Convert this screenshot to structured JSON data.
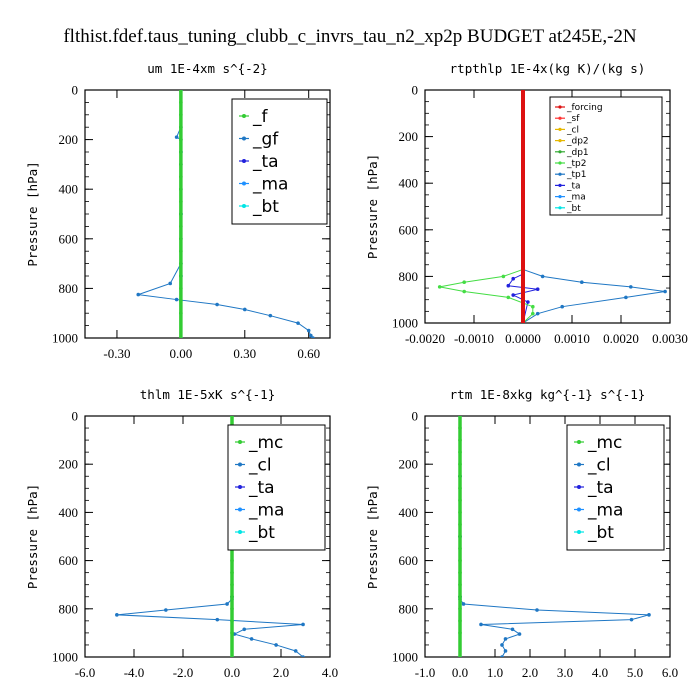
{
  "title": "flthist.fdef.taus_tuning_clubb_c_invrs_tau_n2_xp2p  BUDGET at245E,-2N",
  "colors": {
    "f": "#33cc33",
    "gf": "#1f77c4",
    "ta": "#2222dd",
    "ma": "#1e90ff",
    "bt": "#00e5e5",
    "mc": "#33cc33",
    "cl": "#1f77c4",
    "forcing": "#dd1111",
    "sf": "#ff3333",
    "dp2": "#e6b800",
    "dp1": "#33aa33",
    "tp2": "#44dd44",
    "tp1": "#1f77c4"
  },
  "chart_data": [
    {
      "type": "line",
      "title": "um   1E-4xm s^{-2}",
      "ylabel": "Pressure [hPa]",
      "xlim": [
        -0.45,
        0.7
      ],
      "ylim": [
        1000,
        0
      ],
      "xticks": [
        -0.3,
        0.0,
        0.3,
        0.6
      ],
      "xtick_labels": [
        "-0.30",
        "0.00",
        "0.30",
        "0.60"
      ],
      "yticks": [
        0,
        200,
        400,
        600,
        800,
        1000
      ],
      "legend_position": "top-right",
      "legend_size": "large",
      "series": [
        {
          "name": "_f",
          "color_key": "f",
          "x": [
            0,
            0,
            0,
            0,
            0,
            0,
            0,
            0,
            0,
            0,
            0,
            0,
            0,
            0,
            0,
            0,
            0,
            0,
            0,
            0
          ],
          "y": [
            0,
            50,
            100,
            150,
            200,
            250,
            300,
            350,
            400,
            450,
            500,
            550,
            600,
            650,
            700,
            750,
            800,
            850,
            900,
            1000
          ]
        },
        {
          "name": "_gf",
          "color_key": "gf",
          "x": [
            0.0,
            0.0,
            -0.02,
            0.0,
            0.0,
            0.0,
            0.0,
            0.0,
            0.0,
            -0.05,
            -0.2,
            -0.02,
            0.17,
            0.3,
            0.42,
            0.55,
            0.6,
            0.61,
            0.62
          ],
          "y": [
            0,
            150,
            190,
            200,
            300,
            400,
            500,
            600,
            700,
            780,
            825,
            845,
            865,
            885,
            910,
            940,
            970,
            990,
            1000
          ]
        },
        {
          "name": "_ta",
          "color_key": "ta",
          "x": [
            0,
            0,
            0,
            0,
            0
          ],
          "y": [
            0,
            250,
            500,
            750,
            1000
          ]
        },
        {
          "name": "_ma",
          "color_key": "ma",
          "x": [
            0,
            0,
            0,
            0,
            0
          ],
          "y": [
            0,
            250,
            500,
            750,
            1000
          ]
        },
        {
          "name": "_bt",
          "color_key": "bt",
          "x": [
            0,
            0,
            0,
            0,
            0
          ],
          "y": [
            0,
            250,
            500,
            750,
            1000
          ]
        }
      ]
    },
    {
      "type": "line",
      "title": "rtpthlp   1E-4x(kg K)/(kg s)",
      "ylabel": "Pressure [hPa]",
      "xlim": [
        -0.002,
        0.003
      ],
      "ylim": [
        1000,
        0
      ],
      "xticks": [
        -0.002,
        -0.001,
        0.0,
        0.001,
        0.002,
        0.003
      ],
      "xtick_labels": [
        "-0.0020",
        "-0.0010",
        "0.0000",
        "0.0010",
        "0.0020",
        "0.0030"
      ],
      "yticks": [
        0,
        200,
        400,
        600,
        800,
        1000
      ],
      "legend_position": "top-right",
      "legend_size": "small",
      "series": [
        {
          "name": "_forcing",
          "color_key": "forcing",
          "x": [
            0,
            0,
            0,
            0,
            0,
            0,
            0,
            0,
            0,
            0,
            0,
            0,
            0,
            0,
            0,
            0,
            0,
            0,
            0,
            0
          ],
          "y": [
            0,
            50,
            100,
            150,
            200,
            250,
            300,
            350,
            400,
            450,
            500,
            550,
            600,
            650,
            700,
            750,
            800,
            850,
            900,
            1000
          ]
        },
        {
          "name": "_sf",
          "color_key": "sf",
          "x": [
            0,
            0,
            0,
            0,
            0
          ],
          "y": [
            0,
            250,
            500,
            750,
            1000
          ]
        },
        {
          "name": "_cl",
          "color_key": "dp2",
          "x": [
            0,
            0,
            0,
            0,
            0
          ],
          "y": [
            0,
            250,
            500,
            750,
            1000
          ]
        },
        {
          "name": "_dp2",
          "color_key": "dp2",
          "x": [
            0,
            0,
            0,
            0,
            0
          ],
          "y": [
            0,
            250,
            500,
            750,
            1000
          ]
        },
        {
          "name": "_dp1",
          "color_key": "dp1",
          "x": [
            0,
            0,
            0,
            0,
            0
          ],
          "y": [
            0,
            250,
            500,
            750,
            1000
          ]
        },
        {
          "name": "_tp2",
          "color_key": "tp2",
          "x": [
            0.0,
            0.0,
            -0.0004,
            -0.0012,
            -0.0017,
            -0.0012,
            -0.0003,
            0.0002,
            0.0002,
            0.0
          ],
          "y": [
            0,
            770,
            800,
            825,
            845,
            865,
            890,
            930,
            960,
            1000
          ]
        },
        {
          "name": "_tp1",
          "color_key": "tp1",
          "x": [
            0.0,
            0.0,
            0.0004,
            0.0012,
            0.0022,
            0.0029,
            0.0021,
            0.0008,
            0.0003,
            0.0
          ],
          "y": [
            0,
            770,
            800,
            825,
            845,
            865,
            890,
            930,
            960,
            1000
          ]
        },
        {
          "name": "_ta",
          "color_key": "ta",
          "x": [
            0.0,
            0.0,
            -0.0002,
            -0.0003,
            0.0003,
            -0.0002,
            0.0001,
            0.0
          ],
          "y": [
            0,
            790,
            810,
            840,
            855,
            880,
            910,
            1000
          ]
        },
        {
          "name": "_ma",
          "color_key": "ma",
          "x": [
            0,
            0,
            0,
            0,
            0
          ],
          "y": [
            0,
            250,
            500,
            750,
            1000
          ]
        },
        {
          "name": "_bt",
          "color_key": "bt",
          "x": [
            0,
            0,
            0,
            0,
            0
          ],
          "y": [
            0,
            250,
            500,
            750,
            1000
          ]
        }
      ]
    },
    {
      "type": "line",
      "title": "thlm   1E-5xK s^{-1}",
      "ylabel": "Pressure [hPa]",
      "xlim": [
        -6.0,
        4.0
      ],
      "ylim": [
        1000,
        0
      ],
      "xticks": [
        -6,
        -4,
        -2,
        0,
        2,
        4
      ],
      "xtick_labels": [
        "-6.0",
        "-4.0",
        "-2.0",
        "0.0",
        "2.0",
        "4.0"
      ],
      "yticks": [
        0,
        200,
        400,
        600,
        800,
        1000
      ],
      "legend_position": "top-right",
      "legend_size": "large",
      "series": [
        {
          "name": "_mc",
          "color_key": "mc",
          "x": [
            0,
            0,
            0,
            0,
            0,
            0,
            0,
            0,
            0,
            0,
            0,
            0,
            0,
            0,
            0,
            0,
            0,
            0,
            0,
            0
          ],
          "y": [
            0,
            50,
            100,
            150,
            200,
            250,
            300,
            350,
            400,
            450,
            500,
            550,
            600,
            650,
            700,
            750,
            800,
            850,
            900,
            1000
          ]
        },
        {
          "name": "_cl",
          "color_key": "cl",
          "x": [
            0.0,
            0.0,
            -0.2,
            -2.7,
            -4.7,
            -0.6,
            2.9,
            0.5,
            0.1,
            0.8,
            1.8,
            2.6,
            2.9
          ],
          "y": [
            0,
            760,
            780,
            805,
            825,
            845,
            865,
            885,
            905,
            925,
            950,
            975,
            1000
          ]
        },
        {
          "name": "_ta",
          "color_key": "ta",
          "x": [
            0,
            0,
            0,
            0,
            0
          ],
          "y": [
            0,
            250,
            500,
            750,
            1000
          ]
        },
        {
          "name": "_ma",
          "color_key": "ma",
          "x": [
            0,
            0,
            0,
            0,
            0
          ],
          "y": [
            0,
            250,
            500,
            750,
            1000
          ]
        },
        {
          "name": "_bt",
          "color_key": "bt",
          "x": [
            0,
            0,
            0,
            0,
            0
          ],
          "y": [
            0,
            250,
            500,
            750,
            1000
          ]
        }
      ]
    },
    {
      "type": "line",
      "title": "rtm   1E-8xkg kg^{-1} s^{-1}",
      "ylabel": "Pressure [hPa]",
      "xlim": [
        -1.0,
        6.0
      ],
      "ylim": [
        1000,
        0
      ],
      "xticks": [
        -1,
        0,
        1,
        2,
        3,
        4,
        5,
        6
      ],
      "xtick_labels": [
        "-1.0",
        "0.0",
        "1.0",
        "2.0",
        "3.0",
        "4.0",
        "5.0",
        "6.0"
      ],
      "yticks": [
        0,
        200,
        400,
        600,
        800,
        1000
      ],
      "legend_position": "top-right",
      "legend_size": "large",
      "series": [
        {
          "name": "_mc",
          "color_key": "mc",
          "x": [
            0,
            0,
            0,
            0,
            0,
            0,
            0,
            0,
            0,
            0,
            0,
            0,
            0,
            0,
            0,
            0,
            0,
            0,
            0,
            0
          ],
          "y": [
            0,
            50,
            100,
            150,
            200,
            250,
            300,
            350,
            400,
            450,
            500,
            550,
            600,
            650,
            700,
            750,
            800,
            850,
            900,
            1000
          ]
        },
        {
          "name": "_cl",
          "color_key": "cl",
          "x": [
            0.0,
            0.0,
            0.1,
            2.2,
            5.4,
            4.9,
            0.6,
            1.5,
            1.7,
            1.3,
            1.2,
            1.3,
            1.2
          ],
          "y": [
            0,
            760,
            780,
            805,
            825,
            845,
            865,
            885,
            905,
            925,
            950,
            975,
            1000
          ]
        },
        {
          "name": "_ta",
          "color_key": "ta",
          "x": [
            0,
            0,
            0,
            0,
            0
          ],
          "y": [
            0,
            250,
            500,
            750,
            1000
          ]
        },
        {
          "name": "_ma",
          "color_key": "ma",
          "x": [
            0,
            0,
            0,
            0,
            0
          ],
          "y": [
            0,
            250,
            500,
            750,
            1000
          ]
        },
        {
          "name": "_bt",
          "color_key": "bt",
          "x": [
            0,
            0,
            0,
            0,
            0
          ],
          "y": [
            0,
            250,
            500,
            750,
            1000
          ]
        }
      ]
    }
  ]
}
